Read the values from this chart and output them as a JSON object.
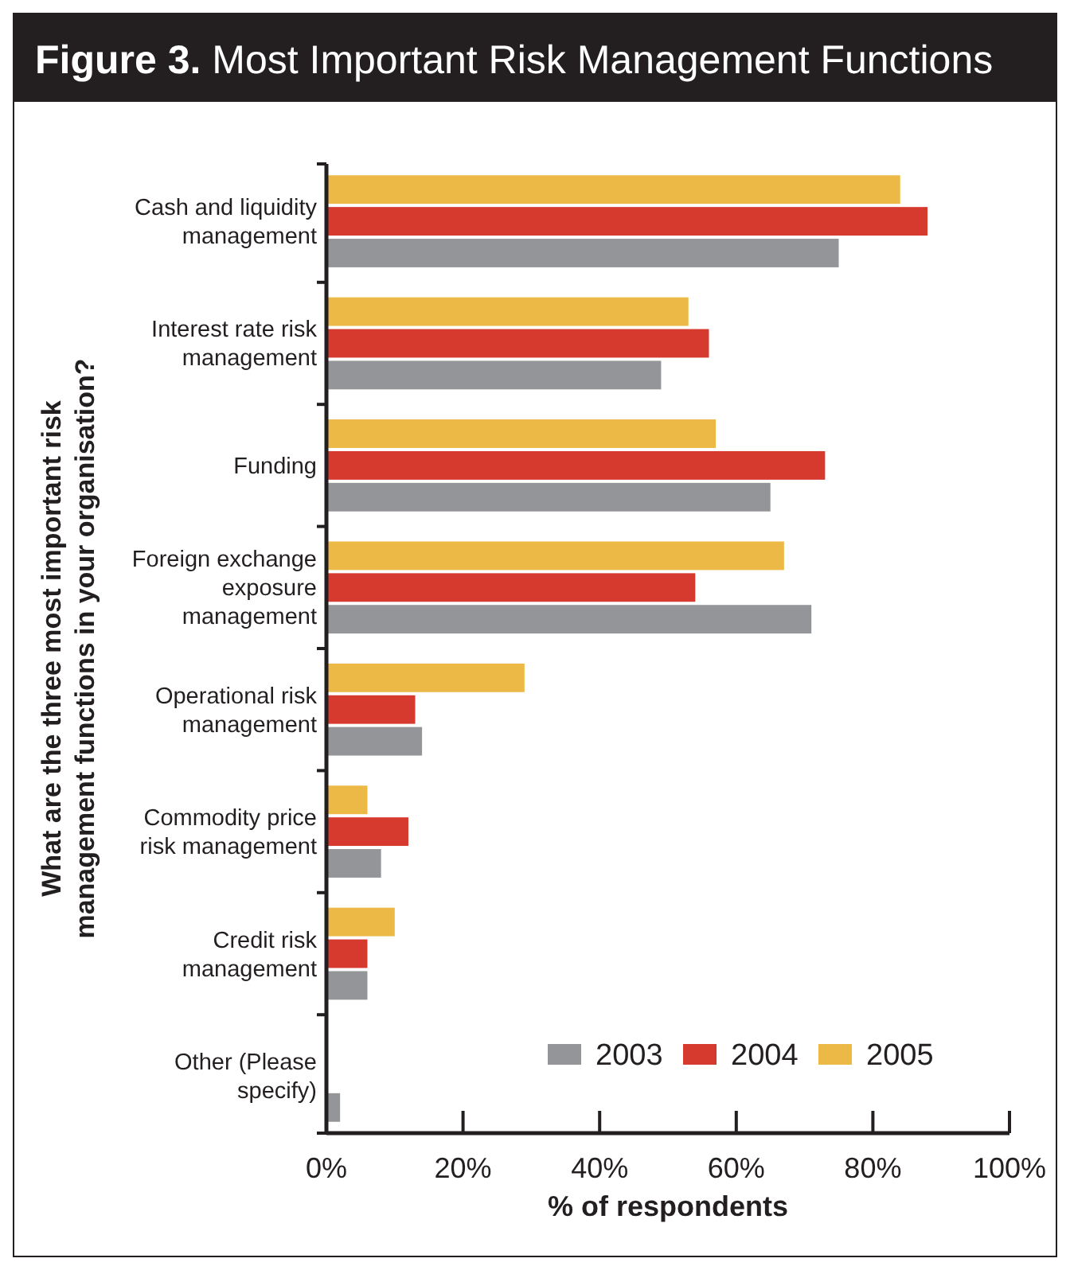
{
  "chart_data": {
    "type": "bar",
    "orientation": "horizontal",
    "title": "Figure 3. Most Important Risk Management Functions",
    "xlabel": "% of respondents",
    "ylabel": "What are the three most important risk management functions in your organisation?",
    "categories": [
      "Cash and liquidity management",
      "Interest rate risk management",
      "Funding",
      "Foreign exchange exposure management",
      "Operational risk management",
      "Commodity price risk management",
      "Credit risk management",
      "Other (Please specify)"
    ],
    "series": [
      {
        "name": "2003",
        "color": "#939598",
        "values": [
          75,
          49,
          65,
          71,
          14,
          8,
          6,
          2
        ]
      },
      {
        "name": "2004",
        "color": "#d63a2f",
        "values": [
          88,
          56,
          73,
          54,
          13,
          12,
          6,
          0
        ]
      },
      {
        "name": "2005",
        "color": "#ecb946",
        "values": [
          84,
          53,
          57,
          67,
          29,
          6,
          10,
          0
        ]
      }
    ],
    "xlim": [
      0,
      100
    ],
    "xticks": [
      {
        "value": 0,
        "label": "0%"
      },
      {
        "value": 20,
        "label": "20%"
      },
      {
        "value": 40,
        "label": "40%"
      },
      {
        "value": 60,
        "label": "60%"
      },
      {
        "value": 80,
        "label": "80%"
      },
      {
        "value": 100,
        "label": "100%"
      }
    ],
    "legend": "bottom right"
  }
}
